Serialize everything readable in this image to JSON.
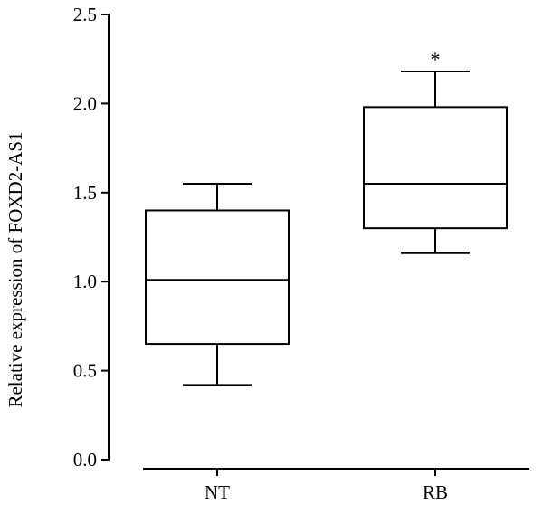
{
  "chart_data": {
    "type": "box",
    "title": "",
    "xlabel": "",
    "ylabel": "Relative expression of FOXD2-AS1",
    "ylim": [
      0.0,
      2.5
    ],
    "yticks": [
      "0.0",
      "0.5",
      "1.0",
      "1.5",
      "2.0",
      "2.5"
    ],
    "categories": [
      "NT",
      "RB"
    ],
    "boxes": [
      {
        "name": "NT",
        "min": 0.42,
        "q1": 0.65,
        "median": 1.01,
        "q3": 1.4,
        "max": 1.55,
        "annotation": ""
      },
      {
        "name": "RB",
        "min": 1.16,
        "q1": 1.3,
        "median": 1.55,
        "q3": 1.98,
        "max": 2.18,
        "annotation": "*"
      }
    ],
    "grid": false,
    "legend": "none"
  }
}
